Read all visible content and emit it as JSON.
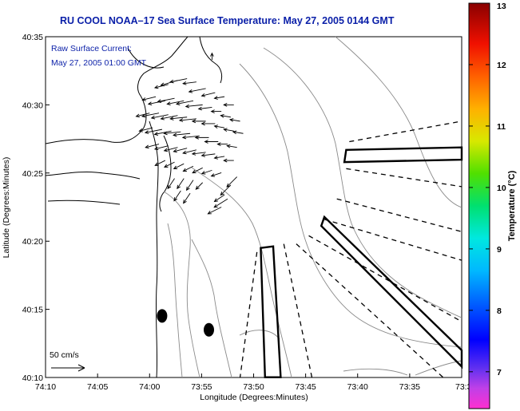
{
  "chart_data": {
    "type": "map",
    "title": "RU COOL  NOAA–17  Sea Surface Temperature:  May 27, 2005 0144 GMT",
    "annotation": [
      "Raw Surface Current:",
      "May 27, 2005 01:00 GMT"
    ],
    "xlabel": "Longitude (Degrees:Minutes)",
    "ylabel": "Latitude (Degrees:Minutes)",
    "x_ticks": [
      {
        "label": "74:10",
        "value": -74.1667
      },
      {
        "label": "74:05",
        "value": -74.0833
      },
      {
        "label": "74:00",
        "value": -74.0
      },
      {
        "label": "73:55",
        "value": -73.9167
      },
      {
        "label": "73:50",
        "value": -73.8333
      },
      {
        "label": "73:45",
        "value": -73.75
      },
      {
        "label": "73:40",
        "value": -73.6667
      },
      {
        "label": "73:35",
        "value": -73.5833
      },
      {
        "label": "73:3",
        "value": -73.5
      }
    ],
    "y_ticks": [
      {
        "label": "40:10",
        "value": 40.1667
      },
      {
        "label": "40:15",
        "value": 40.25
      },
      {
        "label": "40:20",
        "value": 40.3333
      },
      {
        "label": "40:25",
        "value": 40.4167
      },
      {
        "label": "40:30",
        "value": 40.5
      },
      {
        "label": "40:35",
        "value": 40.5833
      }
    ],
    "xlim": [
      -74.1667,
      -73.5
    ],
    "ylim": [
      40.1667,
      40.5833
    ],
    "scale_label": "50 cm/s",
    "colorbar": {
      "label": "Temperature (°C)",
      "ticks": [
        7,
        8,
        9,
        10,
        11,
        12,
        13
      ],
      "range": [
        6.4,
        13
      ]
    },
    "current_vectors": [
      {
        "lon": -73.97,
        "lat": 40.525,
        "u": -4,
        "v": -1
      },
      {
        "lon": -73.955,
        "lat": 40.53,
        "u": -5,
        "v": -1.5
      },
      {
        "lon": -73.94,
        "lat": 40.532,
        "u": -5,
        "v": -1
      },
      {
        "lon": -73.925,
        "lat": 40.528,
        "u": -4,
        "v": -0.5
      },
      {
        "lon": -73.91,
        "lat": 40.52,
        "u": -5,
        "v": -1
      },
      {
        "lon": -73.895,
        "lat": 40.515,
        "u": -4,
        "v": -1
      },
      {
        "lon": -73.88,
        "lat": 40.51,
        "u": -3,
        "v": -0.5
      },
      {
        "lon": -73.865,
        "lat": 40.5,
        "u": -3,
        "v": 0
      },
      {
        "lon": -73.99,
        "lat": 40.51,
        "u": -4,
        "v": -1
      },
      {
        "lon": -73.975,
        "lat": 40.505,
        "u": -5,
        "v": -1
      },
      {
        "lon": -73.96,
        "lat": 40.508,
        "u": -5,
        "v": -1
      },
      {
        "lon": -73.945,
        "lat": 40.505,
        "u": -5,
        "v": -1
      },
      {
        "lon": -73.93,
        "lat": 40.505,
        "u": -5,
        "v": -1
      },
      {
        "lon": -73.915,
        "lat": 40.5,
        "u": -5,
        "v": -0.5
      },
      {
        "lon": -73.9,
        "lat": 40.497,
        "u": -4,
        "v": -0.5
      },
      {
        "lon": -73.885,
        "lat": 40.492,
        "u": -3,
        "v": 0
      },
      {
        "lon": -73.87,
        "lat": 40.485,
        "u": -3,
        "v": 0.5
      },
      {
        "lon": -73.855,
        "lat": 40.48,
        "u": -3,
        "v": 0.5
      },
      {
        "lon": -74.0,
        "lat": 40.49,
        "u": -4,
        "v": -1
      },
      {
        "lon": -73.985,
        "lat": 40.49,
        "u": -5,
        "v": -1
      },
      {
        "lon": -73.97,
        "lat": 40.488,
        "u": -5,
        "v": -1
      },
      {
        "lon": -73.955,
        "lat": 40.487,
        "u": -5,
        "v": -1
      },
      {
        "lon": -73.94,
        "lat": 40.485,
        "u": -5,
        "v": -0.5
      },
      {
        "lon": -73.925,
        "lat": 40.483,
        "u": -5,
        "v": -0.5
      },
      {
        "lon": -73.91,
        "lat": 40.48,
        "u": -4,
        "v": 0
      },
      {
        "lon": -73.895,
        "lat": 40.477,
        "u": -4,
        "v": 0
      },
      {
        "lon": -73.88,
        "lat": 40.472,
        "u": -3,
        "v": 0.5
      },
      {
        "lon": -73.865,
        "lat": 40.468,
        "u": -3,
        "v": 0.5
      },
      {
        "lon": -73.85,
        "lat": 40.465,
        "u": -3,
        "v": 0.5
      },
      {
        "lon": -73.995,
        "lat": 40.472,
        "u": -4,
        "v": -1
      },
      {
        "lon": -73.98,
        "lat": 40.47,
        "u": -5,
        "v": -1
      },
      {
        "lon": -73.965,
        "lat": 40.468,
        "u": -5,
        "v": -1
      },
      {
        "lon": -73.95,
        "lat": 40.467,
        "u": -5,
        "v": -0.5
      },
      {
        "lon": -73.935,
        "lat": 40.465,
        "u": -5,
        "v": -0.5
      },
      {
        "lon": -73.92,
        "lat": 40.462,
        "u": -5,
        "v": -0.5
      },
      {
        "lon": -73.905,
        "lat": 40.46,
        "u": -4,
        "v": 0
      },
      {
        "lon": -73.89,
        "lat": 40.455,
        "u": -4,
        "v": 0
      },
      {
        "lon": -73.875,
        "lat": 40.452,
        "u": -3,
        "v": 0
      },
      {
        "lon": -73.86,
        "lat": 40.448,
        "u": -3,
        "v": 0.5
      },
      {
        "lon": -73.985,
        "lat": 40.452,
        "u": -4,
        "v": -1
      },
      {
        "lon": -73.97,
        "lat": 40.45,
        "u": -4,
        "v": -1
      },
      {
        "lon": -73.955,
        "lat": 40.448,
        "u": -4,
        "v": -1
      },
      {
        "lon": -73.94,
        "lat": 40.447,
        "u": -4,
        "v": -1
      },
      {
        "lon": -73.925,
        "lat": 40.445,
        "u": -4,
        "v": -1
      },
      {
        "lon": -73.91,
        "lat": 40.442,
        "u": -4,
        "v": -0.5
      },
      {
        "lon": -73.895,
        "lat": 40.44,
        "u": -4,
        "v": -0.5
      },
      {
        "lon": -73.88,
        "lat": 40.437,
        "u": -3,
        "v": -0.5
      },
      {
        "lon": -73.865,
        "lat": 40.432,
        "u": -3,
        "v": 0
      },
      {
        "lon": -73.975,
        "lat": 40.432,
        "u": -3,
        "v": -1.5
      },
      {
        "lon": -73.96,
        "lat": 40.43,
        "u": -3,
        "v": -1.5
      },
      {
        "lon": -73.945,
        "lat": 40.428,
        "u": -3,
        "v": -1.5
      },
      {
        "lon": -73.93,
        "lat": 40.425,
        "u": -3,
        "v": -1.5
      },
      {
        "lon": -73.915,
        "lat": 40.423,
        "u": -3,
        "v": -1.5
      },
      {
        "lon": -73.9,
        "lat": 40.42,
        "u": -3,
        "v": -1
      },
      {
        "lon": -73.885,
        "lat": 40.417,
        "u": -3,
        "v": -1
      },
      {
        "lon": -73.96,
        "lat": 40.41,
        "u": -2,
        "v": -3
      },
      {
        "lon": -73.945,
        "lat": 40.41,
        "u": -2,
        "v": -3
      },
      {
        "lon": -73.93,
        "lat": 40.408,
        "u": -2,
        "v": -3
      },
      {
        "lon": -73.915,
        "lat": 40.405,
        "u": -2,
        "v": -2
      },
      {
        "lon": -73.95,
        "lat": 40.395,
        "u": -2,
        "v": -3
      },
      {
        "lon": -73.935,
        "lat": 40.392,
        "u": -2,
        "v": -3
      },
      {
        "lon": -73.88,
        "lat": 40.39,
        "u": -3,
        "v": -2
      },
      {
        "lon": -73.87,
        "lat": 40.402,
        "u": -3,
        "v": -3
      },
      {
        "lon": -73.86,
        "lat": 40.412,
        "u": -3,
        "v": -3
      },
      {
        "lon": -73.885,
        "lat": 40.375,
        "u": -4,
        "v": -2
      },
      {
        "lon": -73.875,
        "lat": 40.385,
        "u": -4,
        "v": -2.5
      },
      {
        "lon": -73.9,
        "lat": 40.555,
        "u": 0,
        "v": 2
      }
    ],
    "deployment_boxes": [
      {
        "shape": "polygon",
        "points": [
          [
            -73.685,
            40.445
          ],
          [
            -73.5,
            40.448
          ],
          [
            -73.5,
            40.433
          ],
          [
            -73.688,
            40.43
          ]
        ]
      },
      {
        "shape": "polygon",
        "points": [
          [
            -73.72,
            40.363
          ],
          [
            -73.5,
            40.2
          ],
          [
            -73.5,
            40.18
          ],
          [
            -73.725,
            40.352
          ]
        ]
      },
      {
        "shape": "polygon",
        "points": [
          [
            -73.822,
            40.325
          ],
          [
            -73.802,
            40.327
          ],
          [
            -73.79,
            40.167
          ],
          [
            -73.815,
            40.167
          ]
        ]
      }
    ],
    "dashed_lines": [
      [
        [
          -73.68,
          40.455
        ],
        [
          -73.5,
          40.48
        ]
      ],
      [
        [
          -73.685,
          40.422
        ],
        [
          -73.5,
          40.4
        ]
      ],
      [
        [
          -73.7,
          40.385
        ],
        [
          -73.5,
          40.345
        ]
      ],
      [
        [
          -73.72,
          40.36
        ],
        [
          -73.5,
          40.31
        ]
      ],
      [
        [
          -73.745,
          40.34
        ],
        [
          -73.5,
          40.235
        ]
      ],
      [
        [
          -73.765,
          40.33
        ],
        [
          -73.53,
          40.167
        ]
      ],
      [
        [
          -73.785,
          40.33
        ],
        [
          -73.74,
          40.167
        ]
      ],
      [
        [
          -73.828,
          40.32
        ],
        [
          -73.855,
          40.167
        ]
      ]
    ],
    "dots": [
      {
        "lon": -73.98,
        "lat": 40.242
      },
      {
        "lon": -73.905,
        "lat": 40.225
      }
    ]
  }
}
